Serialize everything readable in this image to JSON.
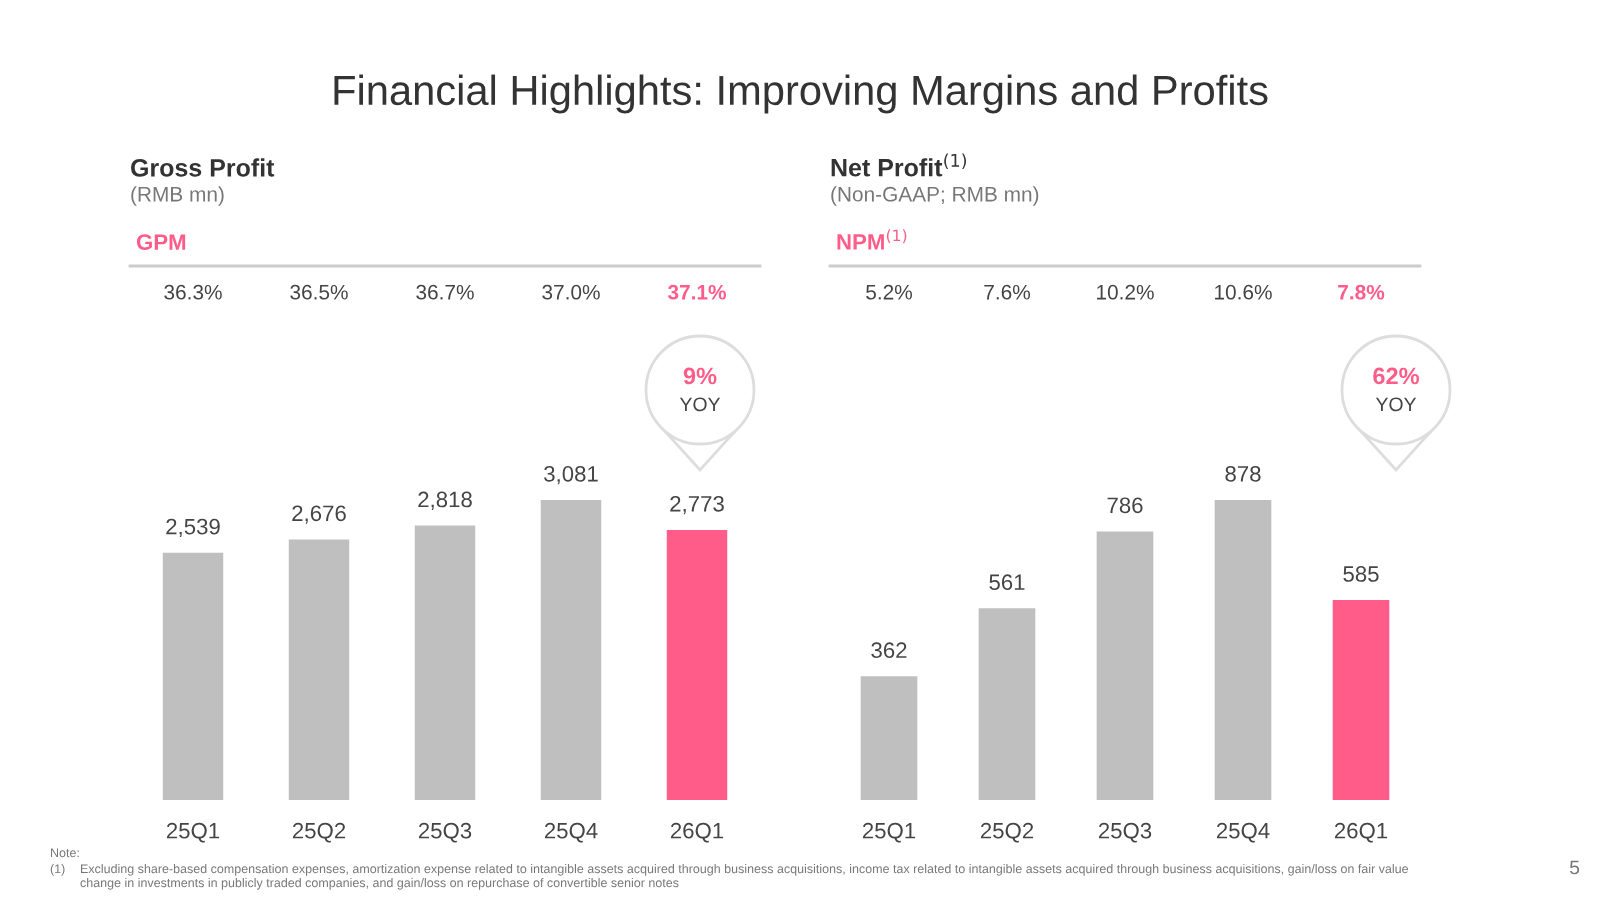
{
  "chart_data": [
    {
      "type": "bar",
      "title": "Gross Profit",
      "subtitle": "(RMB mn)",
      "categories": [
        "25Q1",
        "25Q2",
        "25Q3",
        "25Q4",
        "26Q1"
      ],
      "values": [
        2539,
        2676,
        2818,
        3081,
        2773
      ],
      "value_labels": [
        "2,539",
        "2,676",
        "2,818",
        "3,081",
        "2,773"
      ],
      "colors": [
        "#bfbfbf",
        "#bfbfbf",
        "#bfbfbf",
        "#bfbfbf",
        "#ff5c8a"
      ],
      "annotations": [
        "GPM",
        "36.3%",
        "36.5%",
        "36.7%",
        "37.0%",
        "37.1%",
        "9%",
        "YOY",
        "Financial Highlights: Improving Margins and Profits",
        "Note:",
        "(1)",
        "Excluding share-based compensation expenses, amortization expense related to intangible assets acquired through business acquisitions, income tax related to intangible assets acquired through business acquisitions, gain/loss on fair value",
        "change in investments in publicly traded companies, and gain/loss on repurchase of convertible senior notes",
        "5"
      ]
    },
    {
      "type": "bar",
      "title": "Net Profit$^{(1)}$",
      "subtitle": "(Non-GAAP; RMB mn)",
      "categories": [
        "25Q1",
        "25Q2",
        "25Q3",
        "25Q4",
        "26Q1"
      ],
      "values": [
        362,
        561,
        786,
        878,
        585
      ],
      "value_labels": [
        "362",
        "561",
        "786",
        "878",
        "585"
      ],
      "colors": [
        "#bfbfbf",
        "#bfbfbf",
        "#bfbfbf",
        "#bfbfbf",
        "#ff5c8a"
      ],
      "annotations": [
        "NPM$^{(1)}$",
        "5.2%",
        "7.6%",
        "10.2%",
        "10.6%",
        "7.8%",
        "62%",
        "YOY"
      ]
    }
  ]
}
